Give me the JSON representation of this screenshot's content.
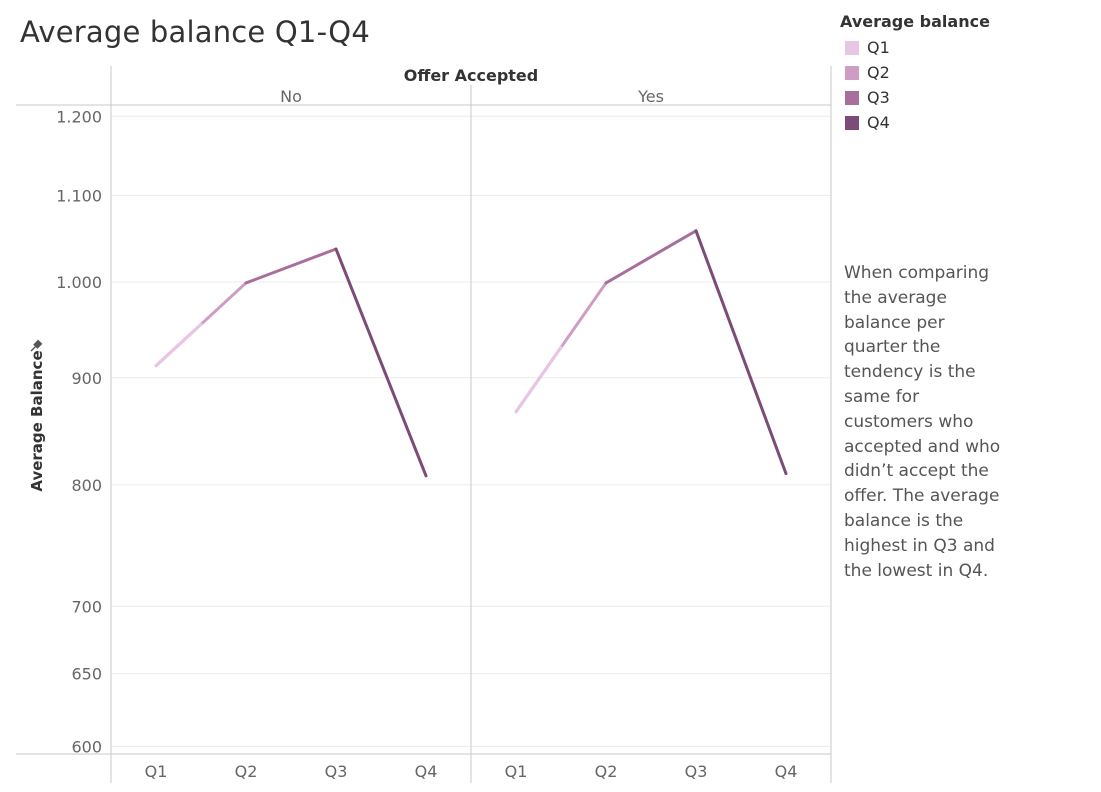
{
  "title": "Average balance Q1-Q4",
  "legend": {
    "title": "Average balance",
    "items": [
      {
        "label": "Q1",
        "color": "#e8c5e5"
      },
      {
        "label": "Q2",
        "color": "#cf9cc4"
      },
      {
        "label": "Q3",
        "color": "#a86f9d"
      },
      {
        "label": "Q4",
        "color": "#7a4c77"
      }
    ]
  },
  "annotation": "When comparing the average balance per quarter the tendency is the same for customers who accepted and who didn’t accept the offer. The average balance is the highest in Q3 and the lowest in Q4.",
  "chart_data": {
    "type": "line",
    "column_header": "Offer Accepted",
    "ylabel": "Average Balance",
    "y_scale": "log",
    "ylim": [
      595,
      1215
    ],
    "y_ticks": [
      600,
      650,
      700,
      800,
      900,
      1000,
      1100,
      1200
    ],
    "y_tick_labels": [
      "600",
      "650",
      "700",
      "800",
      "900",
      "1.000",
      "1.100",
      "1.200"
    ],
    "categories": [
      "Q1",
      "Q2",
      "Q3",
      "Q4"
    ],
    "panels": [
      {
        "label": "No",
        "values": [
          912,
          999,
          1037,
          808
        ]
      },
      {
        "label": "Yes",
        "values": [
          867,
          999,
          1058,
          810
        ]
      }
    ],
    "grid": true
  }
}
